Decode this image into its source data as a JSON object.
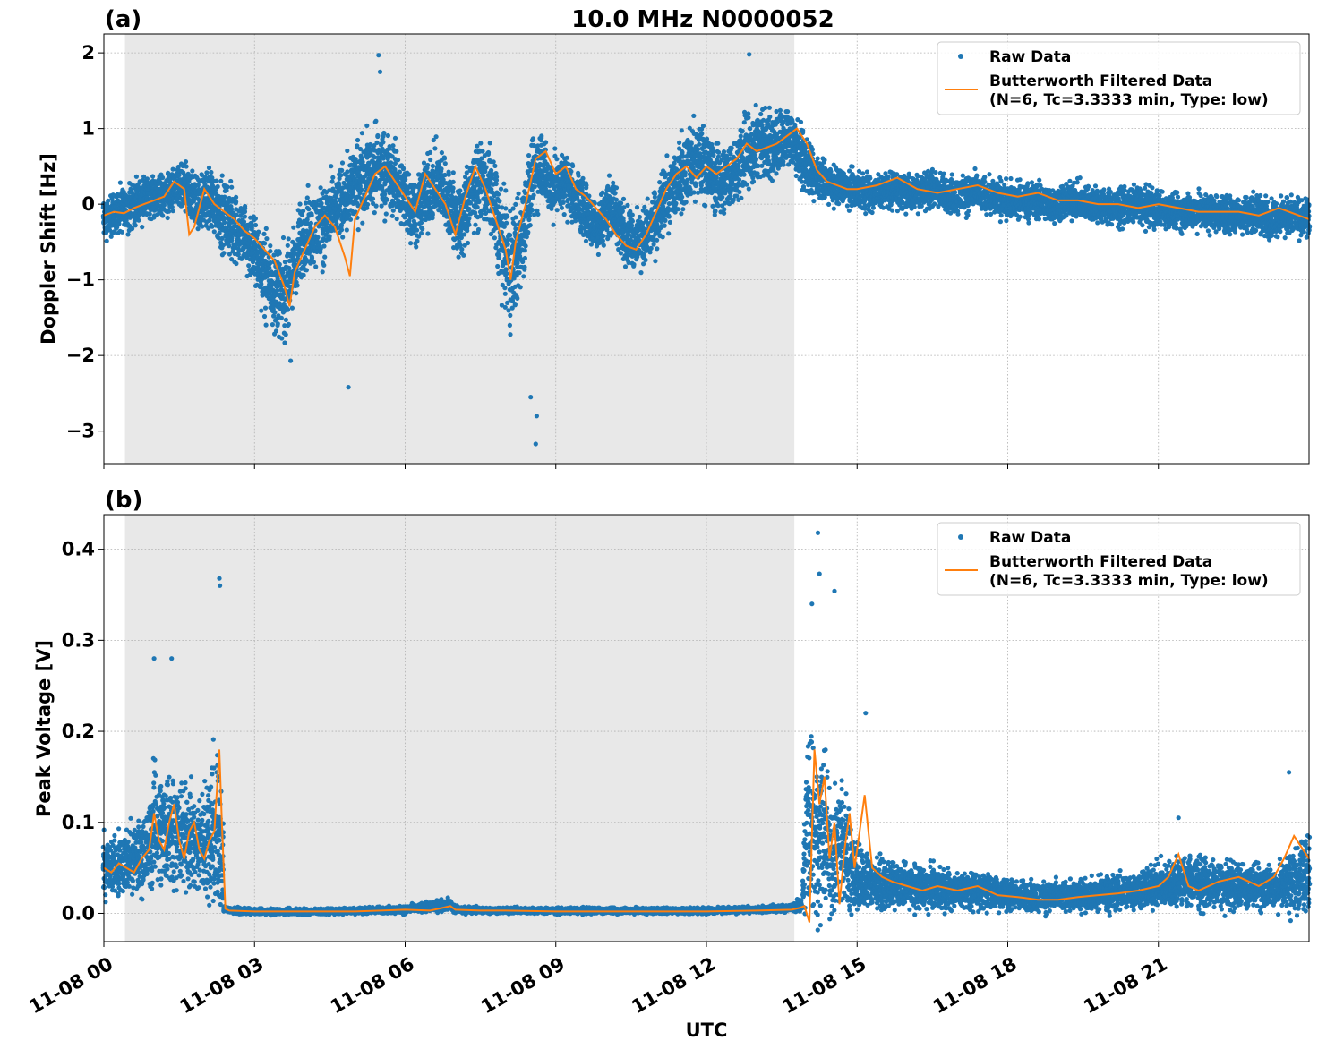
{
  "figure": {
    "title": "10.0 MHz N0000052",
    "xlabel": "UTC"
  },
  "colors": {
    "raw": "#1f77b4",
    "filtered": "#ff7f0e",
    "shade": "#e5e5e5"
  },
  "legend_placement": "top-right",
  "chart_data": [
    {
      "type": "scatter",
      "panel_label": "(a)",
      "ylabel": "Doppler Shift [Hz]",
      "xlim_hours": [
        0,
        24
      ],
      "ylim": [
        -3.43,
        2.25
      ],
      "yticks": [
        2,
        1,
        0,
        -1,
        -2,
        -3
      ],
      "ytick_labels": [
        "2",
        "1",
        "0",
        "−1",
        "−2",
        "−3"
      ],
      "grid": true,
      "shaded_interval_hours": [
        0.42,
        13.75
      ],
      "legend": [
        "Raw Data",
        "Butterworth Filtered Data",
        "(N=6, Tc=3.3333 min, Type: low)"
      ],
      "series": [
        {
          "name": "Raw Data",
          "kind": "points",
          "x_hours": [
            0,
            0.3,
            0.6,
            1.0,
            1.3,
            1.6,
            1.9,
            2.1,
            2.3,
            2.6,
            2.9,
            3.2,
            3.4,
            3.6,
            3.8,
            4.0,
            4.3,
            4.6,
            4.9,
            5.2,
            5.5,
            5.8,
            6.0,
            6.2,
            6.5,
            6.7,
            6.9,
            7.1,
            7.3,
            7.5,
            7.7,
            7.9,
            8.1,
            8.3,
            8.5,
            8.7,
            8.9,
            9.2,
            9.5,
            9.8,
            10.1,
            10.4,
            10.7,
            11.0,
            11.3,
            11.6,
            11.9,
            12.2,
            12.5,
            12.8,
            13.1,
            13.4,
            13.7,
            13.9,
            14.1,
            14.3,
            14.6,
            14.9,
            15.3,
            15.7,
            16.1,
            16.5,
            16.9,
            17.3,
            17.7,
            18.1,
            18.5,
            18.9,
            19.3,
            19.7,
            20.1,
            20.5,
            20.9,
            21.3,
            21.7,
            22.1,
            22.5,
            22.9,
            23.3,
            23.7,
            24.0
          ],
          "y_center": [
            -0.2,
            -0.1,
            0.0,
            0.1,
            0.15,
            0.2,
            0.0,
            0.1,
            -0.1,
            -0.3,
            -0.5,
            -0.9,
            -1.1,
            -1.2,
            -0.8,
            -0.4,
            -0.3,
            -0.1,
            0.2,
            0.4,
            0.5,
            0.3,
            0.1,
            -0.1,
            0.2,
            0.3,
            0.0,
            -0.3,
            0.1,
            0.3,
            0.2,
            -0.4,
            -0.9,
            -0.5,
            0.2,
            0.6,
            0.2,
            0.3,
            0.0,
            -0.3,
            0.0,
            -0.4,
            -0.5,
            -0.2,
            0.2,
            0.5,
            0.6,
            0.3,
            0.4,
            0.7,
            0.8,
            0.8,
            0.9,
            0.6,
            0.4,
            0.3,
            0.25,
            0.2,
            0.15,
            0.2,
            0.15,
            0.2,
            0.1,
            0.15,
            0.1,
            0.05,
            0.05,
            0.0,
            0.05,
            0.0,
            -0.05,
            0.0,
            -0.05,
            -0.1,
            -0.1,
            -0.1,
            -0.15,
            -0.1,
            -0.2,
            -0.15,
            -0.2
          ],
          "y_spread": [
            0.35,
            0.35,
            0.35,
            0.35,
            0.35,
            0.4,
            0.45,
            0.5,
            0.55,
            0.6,
            0.6,
            0.65,
            0.7,
            0.7,
            0.7,
            0.65,
            0.6,
            0.6,
            0.6,
            0.65,
            0.7,
            0.6,
            0.6,
            0.6,
            0.6,
            0.6,
            0.6,
            0.65,
            0.65,
            0.6,
            0.7,
            0.8,
            0.9,
            0.9,
            0.7,
            0.6,
            0.5,
            0.5,
            0.45,
            0.45,
            0.45,
            0.45,
            0.45,
            0.5,
            0.55,
            0.6,
            0.6,
            0.55,
            0.55,
            0.6,
            0.6,
            0.55,
            0.5,
            0.45,
            0.4,
            0.35,
            0.3,
            0.3,
            0.3,
            0.3,
            0.3,
            0.3,
            0.3,
            0.3,
            0.3,
            0.3,
            0.3,
            0.3,
            0.3,
            0.3,
            0.3,
            0.3,
            0.3,
            0.3,
            0.3,
            0.3,
            0.3,
            0.3,
            0.3,
            0.3,
            0.3
          ],
          "extremes": [
            [
              5.47,
              1.97
            ],
            [
              5.5,
              1.75
            ],
            [
              12.85,
              1.98
            ],
            [
              8.6,
              -3.17
            ],
            [
              8.62,
              -2.8
            ],
            [
              4.87,
              -2.42
            ],
            [
              3.72,
              -2.07
            ],
            [
              8.5,
              -2.55
            ]
          ]
        },
        {
          "name": "Butterworth Filtered Data",
          "kind": "line",
          "x_hours": [
            0,
            0.2,
            0.4,
            0.6,
            0.8,
            1.0,
            1.2,
            1.4,
            1.6,
            1.7,
            1.8,
            2.0,
            2.2,
            2.4,
            2.6,
            2.8,
            3.0,
            3.2,
            3.4,
            3.6,
            3.7,
            3.8,
            4.0,
            4.2,
            4.4,
            4.6,
            4.8,
            4.9,
            5.0,
            5.2,
            5.4,
            5.6,
            5.8,
            6.0,
            6.2,
            6.4,
            6.6,
            6.8,
            7.0,
            7.2,
            7.4,
            7.6,
            7.8,
            8.0,
            8.1,
            8.2,
            8.4,
            8.6,
            8.8,
            9.0,
            9.2,
            9.4,
            9.6,
            9.8,
            10.0,
            10.2,
            10.4,
            10.6,
            10.8,
            11.0,
            11.2,
            11.4,
            11.6,
            11.8,
            12.0,
            12.2,
            12.4,
            12.6,
            12.8,
            13.0,
            13.2,
            13.4,
            13.6,
            13.8,
            14.0,
            14.2,
            14.4,
            14.6,
            14.8,
            15.0,
            15.4,
            15.8,
            16.2,
            16.6,
            17.0,
            17.4,
            17.8,
            18.2,
            18.6,
            19.0,
            19.4,
            19.8,
            20.2,
            20.6,
            21.0,
            21.4,
            21.8,
            22.2,
            22.6,
            23.0,
            23.4,
            23.8,
            24.0
          ],
          "values": [
            -0.15,
            -0.1,
            -0.12,
            -0.05,
            0.0,
            0.05,
            0.1,
            0.3,
            0.2,
            -0.4,
            -0.3,
            0.2,
            0.0,
            -0.1,
            -0.2,
            -0.35,
            -0.45,
            -0.6,
            -0.75,
            -1.1,
            -1.35,
            -0.9,
            -0.6,
            -0.3,
            -0.15,
            -0.3,
            -0.7,
            -0.95,
            -0.2,
            0.1,
            0.4,
            0.5,
            0.3,
            0.1,
            -0.1,
            0.4,
            0.2,
            0.0,
            -0.4,
            0.1,
            0.5,
            0.2,
            -0.2,
            -0.6,
            -1.0,
            -0.5,
            0.0,
            0.6,
            0.7,
            0.4,
            0.5,
            0.2,
            0.1,
            -0.05,
            -0.2,
            -0.4,
            -0.55,
            -0.6,
            -0.4,
            -0.1,
            0.2,
            0.4,
            0.5,
            0.35,
            0.5,
            0.4,
            0.5,
            0.6,
            0.8,
            0.7,
            0.75,
            0.8,
            0.9,
            1.0,
            0.8,
            0.45,
            0.3,
            0.25,
            0.2,
            0.2,
            0.25,
            0.35,
            0.2,
            0.15,
            0.2,
            0.25,
            0.15,
            0.1,
            0.15,
            0.05,
            0.05,
            0.0,
            0.0,
            -0.05,
            0.0,
            -0.05,
            -0.1,
            -0.1,
            -0.1,
            -0.15,
            -0.05,
            -0.15,
            -0.2
          ]
        }
      ]
    },
    {
      "type": "scatter",
      "panel_label": "(b)",
      "ylabel": "Peak Voltage [V]",
      "xlim_hours": [
        0,
        24
      ],
      "ylim": [
        -0.031,
        0.438
      ],
      "yticks": [
        0.0,
        0.1,
        0.2,
        0.3,
        0.4
      ],
      "ytick_labels": [
        "0.0",
        "0.1",
        "0.2",
        "0.3",
        "0.4"
      ],
      "xticks_hours": [
        0,
        3,
        6,
        9,
        12,
        15,
        18,
        21
      ],
      "xtick_labels": [
        "11-08 00",
        "11-08 03",
        "11-08 06",
        "11-08 09",
        "11-08 12",
        "11-08 15",
        "11-08 18",
        "11-08 21"
      ],
      "grid": true,
      "shaded_interval_hours": [
        0.42,
        13.75
      ],
      "legend": [
        "Raw Data",
        "Butterworth Filtered Data",
        "(N=6, Tc=3.3333 min, Type: low)"
      ],
      "series": [
        {
          "name": "Raw Data",
          "kind": "points",
          "x_hours": [
            0,
            0.3,
            0.6,
            0.9,
            1.0,
            1.2,
            1.35,
            1.5,
            1.7,
            1.85,
            2.0,
            2.2,
            2.35,
            2.4,
            2.6,
            3.0,
            4.0,
            5.0,
            6.0,
            6.9,
            7.0,
            8.0,
            9.0,
            10.0,
            11.0,
            12.0,
            13.0,
            13.7,
            13.9,
            14.0,
            14.05,
            14.2,
            14.35,
            14.5,
            14.7,
            14.9,
            15.0,
            15.3,
            15.6,
            16.0,
            16.5,
            17.0,
            17.5,
            18.0,
            18.5,
            19.0,
            19.5,
            20.0,
            20.5,
            21.0,
            21.4,
            21.8,
            22.2,
            22.6,
            23.0,
            23.4,
            23.8,
            24.0
          ],
          "y_center": [
            0.05,
            0.055,
            0.06,
            0.07,
            0.1,
            0.09,
            0.1,
            0.08,
            0.09,
            0.07,
            0.08,
            0.1,
            0.07,
            0.005,
            0.003,
            0.002,
            0.002,
            0.003,
            0.004,
            0.01,
            0.004,
            0.003,
            0.003,
            0.003,
            0.003,
            0.003,
            0.004,
            0.006,
            0.01,
            0.1,
            0.12,
            0.08,
            0.09,
            0.06,
            0.08,
            0.05,
            0.04,
            0.035,
            0.03,
            0.03,
            0.028,
            0.025,
            0.025,
            0.02,
            0.018,
            0.018,
            0.02,
            0.022,
            0.025,
            0.03,
            0.035,
            0.035,
            0.03,
            0.03,
            0.03,
            0.028,
            0.04,
            0.045
          ],
          "y_spread": [
            0.04,
            0.04,
            0.045,
            0.06,
            0.08,
            0.07,
            0.09,
            0.06,
            0.08,
            0.06,
            0.07,
            0.12,
            0.1,
            0.004,
            0.004,
            0.004,
            0.004,
            0.004,
            0.005,
            0.008,
            0.005,
            0.004,
            0.004,
            0.004,
            0.004,
            0.004,
            0.004,
            0.005,
            0.01,
            0.12,
            0.14,
            0.12,
            0.1,
            0.08,
            0.09,
            0.06,
            0.05,
            0.035,
            0.03,
            0.03,
            0.03,
            0.025,
            0.025,
            0.02,
            0.02,
            0.02,
            0.02,
            0.025,
            0.025,
            0.03,
            0.035,
            0.035,
            0.03,
            0.03,
            0.03,
            0.03,
            0.05,
            0.05
          ],
          "extremes": [
            [
              14.22,
              0.418
            ],
            [
              14.25,
              0.373
            ],
            [
              2.3,
              0.368
            ],
            [
              2.31,
              0.36
            ],
            [
              1.0,
              0.28
            ],
            [
              1.35,
              0.28
            ],
            [
              14.1,
              0.34
            ],
            [
              14.55,
              0.354
            ],
            [
              15.17,
              0.22
            ],
            [
              23.6,
              0.155
            ],
            [
              21.4,
              0.105
            ]
          ]
        },
        {
          "name": "Butterworth Filtered Data",
          "kind": "line",
          "x_hours": [
            0,
            0.15,
            0.3,
            0.45,
            0.6,
            0.75,
            0.9,
            1.0,
            1.1,
            1.2,
            1.3,
            1.4,
            1.5,
            1.6,
            1.7,
            1.8,
            1.9,
            2.0,
            2.1,
            2.2,
            2.3,
            2.35,
            2.42,
            2.5,
            3.0,
            4.0,
            5.0,
            6.0,
            6.5,
            6.9,
            7.0,
            7.5,
            8.0,
            9.0,
            10.0,
            11.0,
            12.0,
            13.0,
            13.7,
            13.85,
            13.95,
            14.05,
            14.15,
            14.25,
            14.35,
            14.45,
            14.55,
            14.65,
            14.75,
            14.85,
            14.95,
            15.05,
            15.15,
            15.3,
            15.5,
            15.7,
            16.0,
            16.3,
            16.6,
            17.0,
            17.4,
            17.8,
            18.2,
            18.6,
            19.0,
            19.4,
            19.8,
            20.2,
            20.6,
            21.0,
            21.2,
            21.4,
            21.6,
            21.8,
            22.2,
            22.6,
            23.0,
            23.3,
            23.5,
            23.7,
            24.0
          ],
          "values": [
            0.05,
            0.045,
            0.055,
            0.05,
            0.045,
            0.06,
            0.07,
            0.11,
            0.08,
            0.07,
            0.1,
            0.12,
            0.08,
            0.06,
            0.09,
            0.1,
            0.07,
            0.06,
            0.08,
            0.09,
            0.18,
            0.1,
            0.005,
            0.003,
            0.002,
            0.002,
            0.002,
            0.004,
            0.003,
            0.008,
            0.004,
            0.003,
            0.003,
            0.002,
            0.002,
            0.002,
            0.002,
            0.003,
            0.004,
            0.006,
            0.008,
            -0.01,
            0.18,
            0.12,
            0.15,
            0.06,
            0.1,
            0.01,
            0.07,
            0.11,
            0.05,
            0.09,
            0.13,
            0.05,
            0.04,
            0.035,
            0.03,
            0.025,
            0.03,
            0.025,
            0.03,
            0.02,
            0.018,
            0.015,
            0.015,
            0.018,
            0.02,
            0.022,
            0.025,
            0.03,
            0.04,
            0.065,
            0.03,
            0.025,
            0.035,
            0.04,
            0.03,
            0.04,
            0.06,
            0.085,
            0.06
          ]
        }
      ]
    }
  ]
}
